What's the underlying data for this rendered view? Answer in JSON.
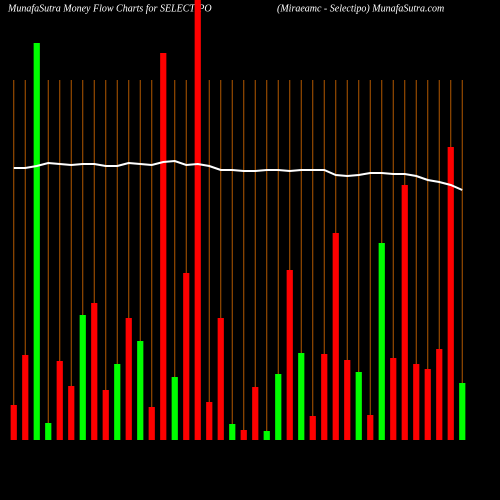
{
  "chart_data": {
    "type": "bar",
    "title": "MunafaSutra  Money Flow  Charts for SELECTIPO",
    "subtitle": "(Miraeamc -  Selectipo) MunafaSutra.com",
    "categories": [
      null,
      null,
      null,
      null,
      null,
      null,
      null,
      null,
      null,
      null,
      null,
      null,
      null,
      null,
      null,
      null,
      null,
      null,
      null,
      null,
      null,
      null,
      null,
      null,
      null,
      null,
      null,
      null,
      null,
      null,
      null,
      null,
      null,
      null,
      null,
      null,
      null,
      null,
      null,
      null
    ],
    "values": [
      35,
      85,
      397,
      17,
      79,
      54,
      125,
      137,
      50,
      76,
      122,
      99,
      33,
      387,
      63,
      167,
      460,
      38,
      122,
      16,
      10,
      53,
      9,
      66,
      170,
      87,
      24,
      86,
      207,
      80,
      68,
      25,
      197,
      82,
      255,
      76,
      71,
      91,
      293,
      57
    ],
    "colors": [
      "#ff0000",
      "#ff0000",
      "#00ff00",
      "#00ff00",
      "#ff0000",
      "#ff0000",
      "#00ff00",
      "#ff0000",
      "#ff0000",
      "#00ff00",
      "#ff0000",
      "#00ff00",
      "#ff0000",
      "#ff0000",
      "#00ff00",
      "#ff0000",
      "#ff0000",
      "#ff0000",
      "#ff0000",
      "#00ff00",
      "#ff0000",
      "#ff0000",
      "#00ff00",
      "#00ff00",
      "#ff0000",
      "#00ff00",
      "#ff0000",
      "#ff0000",
      "#ff0000",
      "#ff0000",
      "#00ff00",
      "#ff0000",
      "#00ff00",
      "#ff0000",
      "#ff0000",
      "#ff0000",
      "#ff0000",
      "#ff0000",
      "#ff0000",
      "#00ff00"
    ],
    "line": {
      "color": "#ffffff",
      "values": [
        272,
        272,
        274,
        277,
        276,
        275,
        276,
        276,
        274,
        274,
        277,
        276,
        275,
        278,
        279,
        275,
        276,
        274,
        270,
        270,
        269,
        269,
        270,
        270,
        269,
        270,
        270,
        270,
        265,
        264,
        265,
        267,
        267,
        266,
        266,
        264,
        260,
        258,
        255,
        250
      ]
    },
    "ylim": [
      0,
      440
    ]
  }
}
